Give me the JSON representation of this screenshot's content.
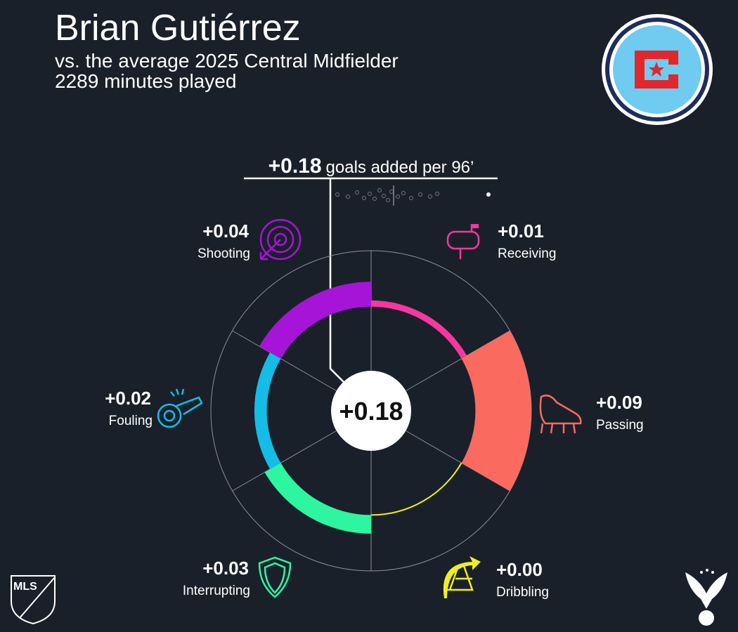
{
  "chart_data": {
    "type": "radial-bar",
    "title": "Brian Gutiérrez",
    "subtitle": [
      "vs. the average 2025 Central Midfielder",
      "2289 minutes played"
    ],
    "header_text": "goals added per 96’",
    "total": 0.18,
    "total_label": "+0.18",
    "categories": [
      "Receiving",
      "Passing",
      "Dribbling",
      "Interrupting",
      "Fouling",
      "Shooting"
    ],
    "values": [
      0.01,
      0.09,
      0.0,
      0.03,
      0.02,
      0.04
    ],
    "value_labels": [
      "+0.01",
      "+0.09",
      "+0.00",
      "+0.03",
      "+0.02",
      "+0.04"
    ],
    "colors": [
      "#f5389e",
      "#fa6a5e",
      "#f0f01e",
      "#2ef5a0",
      "#13bde6",
      "#a614d8"
    ],
    "rlim": [
      -0.1,
      0.09
    ],
    "league_logo_text": "MLS"
  }
}
